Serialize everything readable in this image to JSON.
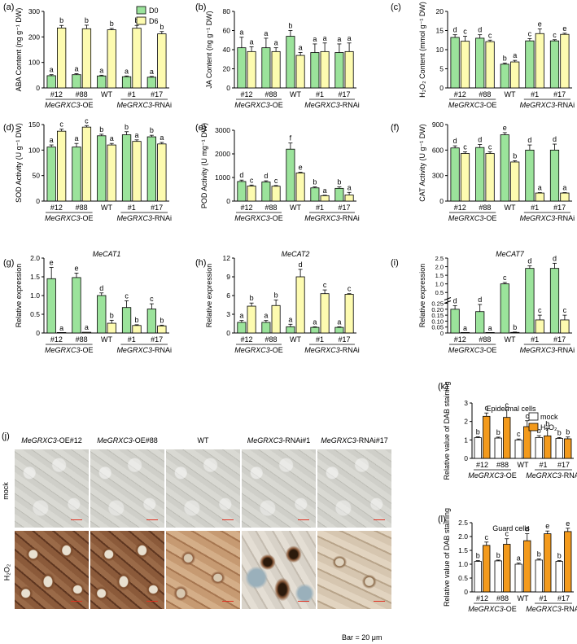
{
  "colors": {
    "d0": "#9be39b",
    "d6": "#fdfbb0",
    "mock": "#ffffff",
    "h2o2": "#f39a1c",
    "scalebar": "#e03020"
  },
  "legend_top": {
    "d0": "D0",
    "d6": "D6"
  },
  "legend_dab": {
    "mock": "mock",
    "h2o2": "H₂O₂"
  },
  "genotypes": [
    "#12",
    "#88",
    "WT",
    "#1",
    "#17"
  ],
  "group_labels": {
    "oe": "MeGRXC3",
    "oe_suffix": "-OE",
    "rnai": "MeGRXC3",
    "rnai_suffix": "-RNAi"
  },
  "chart_data": [
    {
      "panel": "(a)",
      "type": "bar",
      "ylabel": "ABA Content (ng g⁻¹ DW)",
      "ylim": [
        0,
        300
      ],
      "yticks": [
        "0",
        "100",
        "200",
        "300"
      ],
      "ytick_values": [
        0,
        100,
        200,
        300
      ],
      "categories": [
        "#12",
        "#88",
        "WT",
        "#1",
        "#17"
      ],
      "series": [
        {
          "name": "D0",
          "values": [
            48,
            52,
            47,
            44,
            42
          ],
          "errors": [
            4,
            4,
            3,
            3,
            3
          ],
          "letters": [
            "a",
            "a",
            "a",
            "a",
            "a"
          ]
        },
        {
          "name": "D6",
          "values": [
            235,
            232,
            228,
            234,
            212
          ],
          "errors": [
            10,
            14,
            5,
            11,
            9
          ],
          "letters": [
            "b",
            "b",
            "b",
            "b",
            "b"
          ]
        }
      ]
    },
    {
      "panel": "(b)",
      "type": "bar",
      "ylabel": "JA Content (ng g⁻¹ DW)",
      "ylim": [
        0,
        80
      ],
      "yticks": [
        "0",
        "20",
        "40",
        "60",
        "80"
      ],
      "ytick_values": [
        0,
        20,
        40,
        60,
        80
      ],
      "categories": [
        "#12",
        "#88",
        "WT",
        "#1",
        "#17"
      ],
      "series": [
        {
          "values": [
            42,
            42,
            54,
            37,
            37
          ],
          "errors": [
            11,
            10,
            6,
            9,
            9
          ],
          "letters": [
            "a",
            "a",
            "b",
            "a",
            "a"
          ]
        },
        {
          "values": [
            38,
            38,
            34,
            38,
            38
          ],
          "errors": [
            5,
            4,
            3,
            9,
            9
          ],
          "letters": [
            "a",
            "a",
            "a",
            "a",
            "a"
          ]
        }
      ]
    },
    {
      "panel": "(c)",
      "type": "bar",
      "ylabel": "H₂O₂ Content (mmol g⁻¹ DW)",
      "ylim": [
        0,
        20
      ],
      "yticks": [
        "0",
        "5",
        "10",
        "15",
        "20"
      ],
      "ytick_values": [
        0,
        5,
        10,
        15,
        20
      ],
      "categories": [
        "#12",
        "#88",
        "WT",
        "#1",
        "#17"
      ],
      "series": [
        {
          "values": [
            13.2,
            13.0,
            6.2,
            12.3,
            12.3
          ],
          "errors": [
            0.7,
            0.9,
            0.3,
            0.6,
            0.3
          ],
          "letters": [
            "d",
            "d",
            "b",
            "c",
            "c"
          ]
        },
        {
          "values": [
            12.2,
            12.1,
            6.8,
            14.2,
            14.0
          ],
          "errors": [
            1.3,
            0.4,
            0.4,
            1.2,
            0.3
          ],
          "letters": [
            "c",
            "c",
            "a",
            "e",
            "e"
          ]
        }
      ]
    },
    {
      "panel": "(d)",
      "type": "bar",
      "ylabel": "SOD Activity (U g⁻¹ DW)",
      "ylim": [
        0,
        150
      ],
      "yticks": [
        "0",
        "50",
        "100",
        "150"
      ],
      "ytick_values": [
        0,
        50,
        100,
        150
      ],
      "categories": [
        "#12",
        "#88",
        "WT",
        "#1",
        "#17"
      ],
      "series": [
        {
          "values": [
            106,
            106,
            128,
            130,
            126
          ],
          "errors": [
            4,
            7,
            3,
            6,
            3
          ],
          "letters": [
            "a",
            "a",
            "b",
            "b",
            "b"
          ]
        },
        {
          "values": [
            137,
            145,
            110,
            117,
            112
          ],
          "errors": [
            4,
            3,
            3,
            3,
            3
          ],
          "letters": [
            "c",
            "c",
            "a",
            "a",
            "a"
          ]
        }
      ]
    },
    {
      "panel": "(e)",
      "type": "bar",
      "ylabel": "POD Activity (U mg⁻¹ DW)",
      "ylim": [
        0,
        3000
      ],
      "yticks": [
        "0",
        "1000",
        "2000",
        "3000"
      ],
      "ytick_values": [
        0,
        1000,
        2000,
        3000
      ],
      "categories": [
        "#12",
        "#88",
        "WT",
        "#1",
        "#17"
      ],
      "series": [
        {
          "values": [
            830,
            810,
            2200,
            560,
            540
          ],
          "errors": [
            60,
            50,
            260,
            40,
            60
          ],
          "letters": [
            "d",
            "d",
            "f",
            "b",
            "b"
          ]
        },
        {
          "values": [
            640,
            630,
            1190,
            230,
            260
          ],
          "errors": [
            40,
            30,
            30,
            20,
            110
          ],
          "letters": [
            "c",
            "c",
            "e",
            "a",
            "a"
          ]
        }
      ]
    },
    {
      "panel": "(f)",
      "type": "bar",
      "ylabel": "CAT Activity (U g⁻¹ DW)",
      "ylim": [
        0,
        900
      ],
      "yticks": [
        "0",
        "300",
        "600",
        "900"
      ],
      "ytick_values": [
        0,
        300,
        600,
        900
      ],
      "categories": [
        "#12",
        "#88",
        "WT",
        "#1",
        "#17"
      ],
      "series": [
        {
          "values": [
            625,
            630,
            780,
            600,
            600
          ],
          "errors": [
            25,
            35,
            25,
            60,
            70
          ],
          "letters": [
            "d",
            "d",
            "e",
            "d",
            "d"
          ]
        },
        {
          "values": [
            560,
            560,
            460,
            95,
            95
          ],
          "errors": [
            20,
            20,
            15,
            5,
            5
          ],
          "letters": [
            "c",
            "c",
            "b",
            "a",
            "a"
          ]
        }
      ]
    },
    {
      "panel": "(g)",
      "type": "bar",
      "title": "MeCAT1",
      "ylabel": "Relative expression",
      "ylim": [
        0,
        2.0
      ],
      "yticks": [
        "0",
        "0.5",
        "1.0",
        "1.5",
        "2.0"
      ],
      "ytick_values": [
        0,
        0.5,
        1.0,
        1.5,
        2.0
      ],
      "categories": [
        "#12",
        "#88",
        "WT",
        "#1",
        "#17"
      ],
      "series": [
        {
          "values": [
            1.45,
            1.48,
            1.0,
            0.68,
            0.64
          ],
          "errors": [
            0.3,
            0.12,
            0.07,
            0.18,
            0.14
          ],
          "letters": [
            "e",
            "e",
            "d",
            "c",
            "c"
          ]
        },
        {
          "values": [
            0.0,
            0.02,
            0.26,
            0.2,
            0.19
          ],
          "errors": [
            0.0,
            0.0,
            0.08,
            0.02,
            0.02
          ],
          "letters": [
            "a",
            "a",
            "b",
            "b",
            "b"
          ]
        }
      ]
    },
    {
      "panel": "(h)",
      "type": "bar",
      "title": "MeCAT2",
      "ylabel": "Relative expression",
      "ylim": [
        0,
        12
      ],
      "yticks": [
        "0",
        "3",
        "6",
        "9",
        "12"
      ],
      "ytick_values": [
        0,
        3,
        6,
        9,
        12
      ],
      "categories": [
        "#12",
        "#88",
        "WT",
        "#1",
        "#17"
      ],
      "series": [
        {
          "values": [
            1.7,
            1.7,
            1.0,
            0.9,
            0.9
          ],
          "errors": [
            0.3,
            0.3,
            0.4,
            0.1,
            0.1
          ],
          "letters": [
            "a",
            "a",
            "a",
            "a",
            "a"
          ]
        },
        {
          "values": [
            4.3,
            4.4,
            9.0,
            6.3,
            6.2
          ],
          "errors": [
            0.5,
            0.9,
            1.2,
            0.6,
            0.1
          ],
          "letters": [
            "b",
            "b",
            "d",
            "c",
            "c"
          ]
        }
      ]
    },
    {
      "panel": "(i)",
      "type": "bar",
      "title": "MeCAT7",
      "ylabel": "Relative expression",
      "ylim": [
        0,
        2.5
      ],
      "axis_break": true,
      "yticks": [
        "0",
        "0.05",
        "0.10",
        "0.15",
        "0.20",
        "0.25",
        "0.5",
        "1.0",
        "1.5",
        "2.0",
        "2.5"
      ],
      "ytick_values": [
        0,
        0.05,
        0.1,
        0.15,
        0.2,
        0.25,
        0.5,
        1.0,
        1.5,
        2.0,
        2.5
      ],
      "categories": [
        "#12",
        "#88",
        "WT",
        "#1",
        "#17"
      ],
      "series": [
        {
          "values": [
            0.2,
            0.18,
            1.0,
            1.9,
            1.9
          ],
          "errors": [
            0.03,
            0.06,
            0.08,
            0.15,
            0.3
          ],
          "letters": [
            "d",
            "d",
            "c",
            "d",
            "d"
          ]
        },
        {
          "values": [
            0.0,
            0.0,
            0.005,
            0.11,
            0.11
          ],
          "errors": [
            0.0,
            0.0,
            0.003,
            0.04,
            0.04
          ],
          "letters": [
            "a",
            "a",
            "b",
            "c",
            "c"
          ]
        }
      ]
    },
    {
      "panel": "(k)",
      "type": "bar",
      "title": "Epidermal cells",
      "ylabel": "Relative value of DAB staining",
      "ylim": [
        0,
        3
      ],
      "yticks": [
        "0",
        "1",
        "2",
        "3"
      ],
      "ytick_values": [
        0,
        1,
        2,
        3
      ],
      "categories": [
        "#12",
        "#88",
        "WT",
        "#1",
        "#17"
      ],
      "series": [
        {
          "name": "mock",
          "values": [
            1.12,
            1.1,
            1.0,
            1.13,
            1.08
          ],
          "errors": [
            0.05,
            0.05,
            0.05,
            0.1,
            0.05
          ],
          "letters": [
            "b",
            "b",
            "c",
            "b",
            "b"
          ]
        },
        {
          "name": "H₂O₂",
          "values": [
            2.28,
            2.22,
            1.72,
            1.22,
            1.06
          ],
          "errors": [
            0.18,
            0.4,
            0.32,
            0.38,
            0.1
          ],
          "letters": [
            "c",
            "c",
            "c",
            "b",
            "b"
          ]
        }
      ]
    },
    {
      "panel": "(l)",
      "type": "bar",
      "title": "Guard cells",
      "ylabel": "Relative value of DAB staining",
      "ylim": [
        0,
        2.5
      ],
      "yticks": [
        "0",
        "0.5",
        "1.0",
        "1.5",
        "2.0",
        "2.5"
      ],
      "ytick_values": [
        0,
        0.5,
        1.0,
        1.5,
        2.0,
        2.5
      ],
      "categories": [
        "#12",
        "#88",
        "WT",
        "#1",
        "#17"
      ],
      "series": [
        {
          "values": [
            1.1,
            1.12,
            1.0,
            1.15,
            1.1
          ],
          "errors": [
            0.03,
            0.03,
            0.04,
            0.04,
            0.03
          ],
          "letters": [
            "b",
            "b",
            "a",
            "b",
            "b"
          ]
        },
        {
          "values": [
            1.68,
            1.72,
            1.85,
            2.1,
            2.18
          ],
          "errors": [
            0.12,
            0.2,
            0.25,
            0.1,
            0.12
          ],
          "letters": [
            "c",
            "c",
            "d",
            "e",
            "e"
          ]
        }
      ]
    }
  ],
  "micro": {
    "panel": "(j)",
    "columns": [
      {
        "gene": "MeGRXC3",
        "suffix": "-OE#12"
      },
      {
        "gene": "MeGRXC3",
        "suffix": "-OE#88"
      },
      {
        "gene": "",
        "suffix": "WT"
      },
      {
        "gene": "MeGRXC3",
        "suffix": "-RNAi#1"
      },
      {
        "gene": "MeGRXC3",
        "suffix": "-RNAi#17"
      }
    ],
    "rows": [
      "mock",
      "H₂O₂"
    ],
    "scale_label": "Bar = 20 μm"
  }
}
